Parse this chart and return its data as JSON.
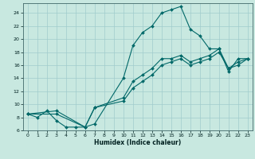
{
  "title": "",
  "xlabel": "Humidex (Indice chaleur)",
  "bg_color": "#c8e8e0",
  "line_color": "#006868",
  "grid_color": "#a0cccc",
  "xlim": [
    -0.5,
    23.5
  ],
  "ylim": [
    6,
    25.5
  ],
  "xticks": [
    0,
    1,
    2,
    3,
    4,
    5,
    6,
    7,
    8,
    9,
    10,
    11,
    12,
    13,
    14,
    15,
    16,
    17,
    18,
    19,
    20,
    21,
    22,
    23
  ],
  "yticks": [
    6,
    8,
    10,
    12,
    14,
    16,
    18,
    20,
    22,
    24
  ],
  "line1_x": [
    0,
    1,
    2,
    3,
    4,
    5,
    6,
    7,
    10,
    11,
    12,
    13,
    14,
    15,
    16,
    17,
    18,
    19,
    20,
    21,
    22,
    23
  ],
  "line1_y": [
    8.5,
    8.0,
    9.0,
    7.5,
    6.5,
    6.5,
    6.5,
    7.0,
    14.0,
    19.0,
    21.0,
    22.0,
    24.0,
    24.5,
    25.0,
    21.5,
    20.5,
    18.5,
    18.5,
    15.0,
    17.0,
    17.0
  ],
  "line2_x": [
    0,
    3,
    6,
    7,
    10,
    11,
    12,
    13,
    14,
    15,
    16,
    17,
    18,
    19,
    20,
    21,
    22,
    23
  ],
  "line2_y": [
    8.5,
    9.0,
    6.5,
    9.5,
    11.0,
    13.5,
    14.5,
    15.5,
    17.0,
    17.0,
    17.5,
    16.5,
    17.0,
    17.5,
    18.5,
    15.5,
    16.5,
    17.0
  ],
  "line3_x": [
    0,
    3,
    6,
    7,
    10,
    11,
    12,
    13,
    14,
    15,
    16,
    17,
    18,
    19,
    20,
    21,
    22,
    23
  ],
  "line3_y": [
    8.5,
    8.5,
    6.5,
    9.5,
    10.5,
    12.5,
    13.5,
    14.5,
    16.0,
    16.5,
    17.0,
    16.0,
    16.5,
    17.0,
    18.0,
    15.5,
    16.0,
    17.0
  ]
}
